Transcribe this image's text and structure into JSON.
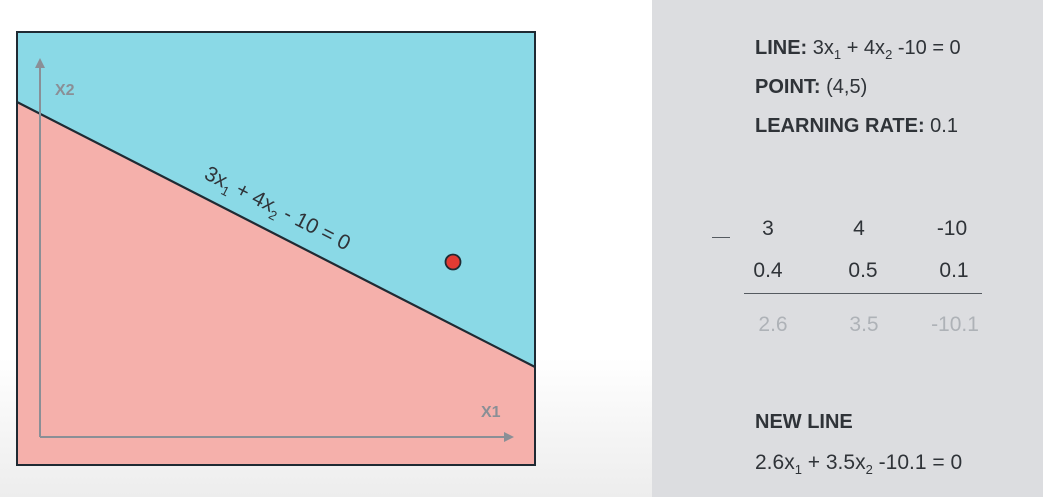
{
  "diagram": {
    "x_axis_label": "X1",
    "y_axis_label": "X2",
    "line_label": {
      "c1": "3x",
      "s1": "1",
      "mid": " + 4x",
      "s2": "2",
      "rest": " - 10 = 0"
    },
    "colors": {
      "region_above": "#8ad9e6",
      "region_below": "#f5b0ab",
      "boundary_line": "#1f2a33",
      "point_fill": "#e23b33",
      "frame": "#1f2a33",
      "axes": "#8a8f96"
    }
  },
  "info": {
    "line_label": "LINE:",
    "line_eq": {
      "c1": " 3x",
      "s1": "1",
      "mid": " + 4x",
      "s2": "2",
      "rest": " -10 = 0"
    },
    "point_label": "POINT:",
    "point_value": " (4,5)",
    "rate_label": "LEARNING RATE:",
    "rate_value": " 0.1"
  },
  "calc": {
    "operator": "−",
    "row_a": [
      "3",
      "4",
      "-10"
    ],
    "row_b": [
      "0.4",
      "0.5",
      "0.1"
    ],
    "result": [
      "2.6",
      "3.5",
      "-10.1"
    ]
  },
  "new_line": {
    "title": "NEW LINE",
    "eq": {
      "c1": "2.6x",
      "s1": "1",
      "mid": " + 3.5x",
      "s2": "2",
      "rest": " -10.1 = 0"
    }
  }
}
